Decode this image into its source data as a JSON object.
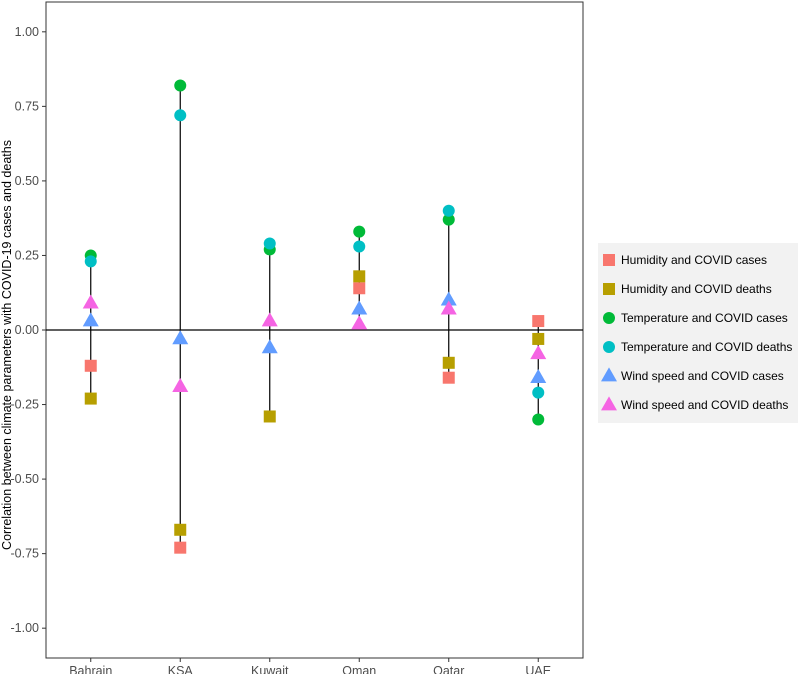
{
  "chart_data": {
    "type": "scatter",
    "ylabel": "Correlation between climate parameters with COVID-19 cases and deaths",
    "xlabel": "",
    "ylim": [
      -1.1,
      1.1
    ],
    "yticks": [
      "-1.00",
      "-0.75",
      "-0.50",
      "-0.25",
      "0.00",
      "0.25",
      "0.50",
      "0.75",
      "1.00"
    ],
    "categories": [
      "Bahrain",
      "KSA",
      "Kuwait",
      "Oman",
      "Qatar",
      "UAE"
    ],
    "grid": false,
    "legend_position": "right",
    "series": [
      {
        "name": "Humidity and COVID cases",
        "shape": "square",
        "color": "#F8766D",
        "values": [
          -0.12,
          -0.73,
          null,
          0.14,
          -0.16,
          0.03
        ]
      },
      {
        "name": "Humidity and COVID deaths",
        "shape": "square",
        "color": "#B79F00",
        "values": [
          -0.23,
          -0.67,
          -0.29,
          0.18,
          -0.11,
          -0.03
        ]
      },
      {
        "name": "Temperature and COVID cases",
        "shape": "circle",
        "color": "#00BA38",
        "values": [
          0.25,
          0.82,
          0.27,
          0.33,
          0.37,
          -0.3
        ]
      },
      {
        "name": "Temperature and COVID deaths",
        "shape": "circle",
        "color": "#00BFC4",
        "values": [
          0.23,
          0.72,
          0.29,
          0.28,
          0.4,
          -0.21
        ]
      },
      {
        "name": "Wind speed and COVID cases",
        "shape": "triangle",
        "color": "#619CFF",
        "values": [
          0.03,
          -0.03,
          -0.06,
          0.07,
          0.1,
          -0.16
        ]
      },
      {
        "name": "Wind speed and COVID deaths",
        "shape": "triangle",
        "color": "#F564E3",
        "values": [
          0.09,
          -0.19,
          0.03,
          0.02,
          0.07,
          -0.08
        ]
      }
    ]
  }
}
